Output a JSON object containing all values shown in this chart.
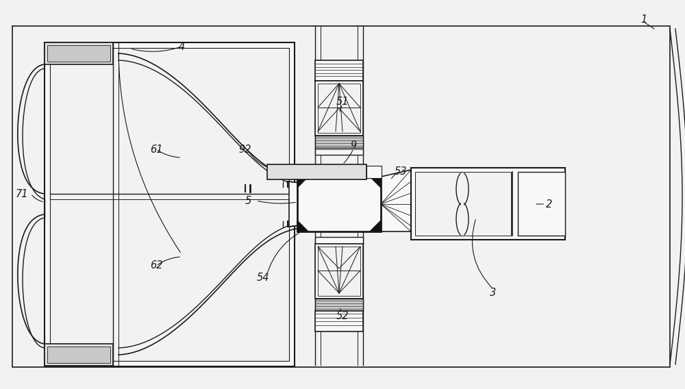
{
  "bg_color": "#f2f2f2",
  "line_color": "#2a2a2a",
  "dark_color": "#1a1a1a",
  "light_fill": "#e0e0e0",
  "white_fill": "#f8f8f8",
  "gray_fill": "#c8c8c8",
  "dark_fill": "#111111",
  "figsize": [
    10.0,
    5.68
  ],
  "dpi": 100
}
